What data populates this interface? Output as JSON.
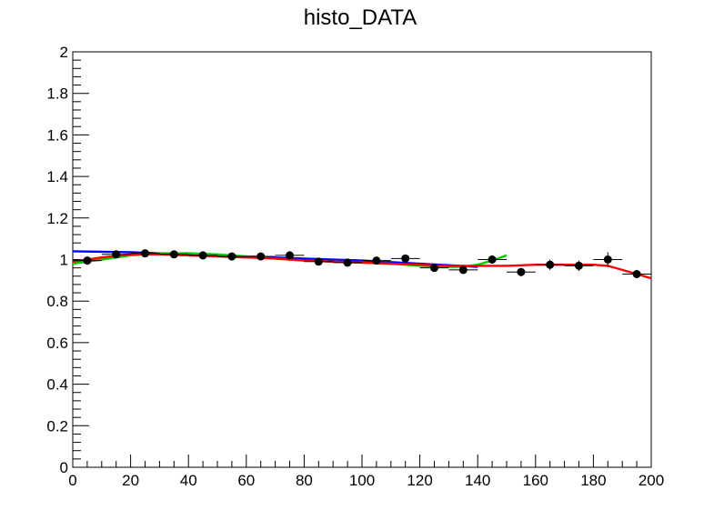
{
  "chart_data": {
    "type": "scatter",
    "title": "histo_DATA",
    "xlabel": "",
    "ylabel": "",
    "xlim": [
      0,
      200
    ],
    "ylim": [
      0,
      2
    ],
    "grid": false,
    "x_tick_labels": [
      "0",
      "20",
      "40",
      "60",
      "80",
      "100",
      "120",
      "140",
      "160",
      "180",
      "200"
    ],
    "y_tick_labels": [
      "0",
      "0.2",
      "0.4",
      "0.6",
      "0.8",
      "1",
      "1.2",
      "1.4",
      "1.6",
      "1.8",
      "2"
    ],
    "points": {
      "bin_half_width": 5,
      "color": "#000000",
      "x": [
        5,
        15,
        25,
        35,
        45,
        55,
        65,
        75,
        85,
        95,
        105,
        115,
        125,
        135,
        145,
        155,
        165,
        175,
        185,
        195
      ],
      "y": [
        0.995,
        1.025,
        1.03,
        1.025,
        1.02,
        1.015,
        1.015,
        1.02,
        0.99,
        0.985,
        0.995,
        1.005,
        0.96,
        0.95,
        1.0,
        0.94,
        0.975,
        0.97,
        1.0,
        0.93
      ],
      "y_err": [
        0.02,
        0.012,
        0.012,
        0.01,
        0.01,
        0.01,
        0.01,
        0.012,
        0.012,
        0.012,
        0.014,
        0.014,
        0.016,
        0.016,
        0.02,
        0.02,
        0.025,
        0.025,
        0.035,
        0.02
      ]
    },
    "curves": [
      {
        "color": "#0000ff",
        "x": [
          0,
          20,
          40,
          60,
          80,
          100,
          120,
          140
        ],
        "y": [
          1.04,
          1.035,
          1.025,
          1.015,
          1.005,
          0.995,
          0.98,
          0.965
        ]
      },
      {
        "color": "#00cc00",
        "x": [
          0,
          10,
          20,
          30,
          40,
          50,
          60,
          70,
          80,
          90,
          100,
          110,
          120,
          130,
          135,
          140,
          145,
          150
        ],
        "y": [
          0.98,
          1.0,
          1.02,
          1.03,
          1.03,
          1.025,
          1.015,
          1.005,
          0.995,
          0.99,
          0.985,
          0.98,
          0.97,
          0.965,
          0.965,
          0.975,
          0.995,
          1.02
        ]
      },
      {
        "color": "#ff0000",
        "x": [
          0,
          10,
          20,
          30,
          40,
          50,
          60,
          70,
          80,
          90,
          100,
          110,
          120,
          130,
          140,
          150,
          160,
          170,
          180,
          185,
          190,
          195,
          200
        ],
        "y": [
          0.99,
          1.01,
          1.025,
          1.025,
          1.02,
          1.015,
          1.01,
          1.005,
          0.995,
          0.99,
          0.985,
          0.98,
          0.975,
          0.97,
          0.97,
          0.97,
          0.975,
          0.975,
          0.975,
          0.97,
          0.95,
          0.93,
          0.91
        ]
      }
    ]
  }
}
